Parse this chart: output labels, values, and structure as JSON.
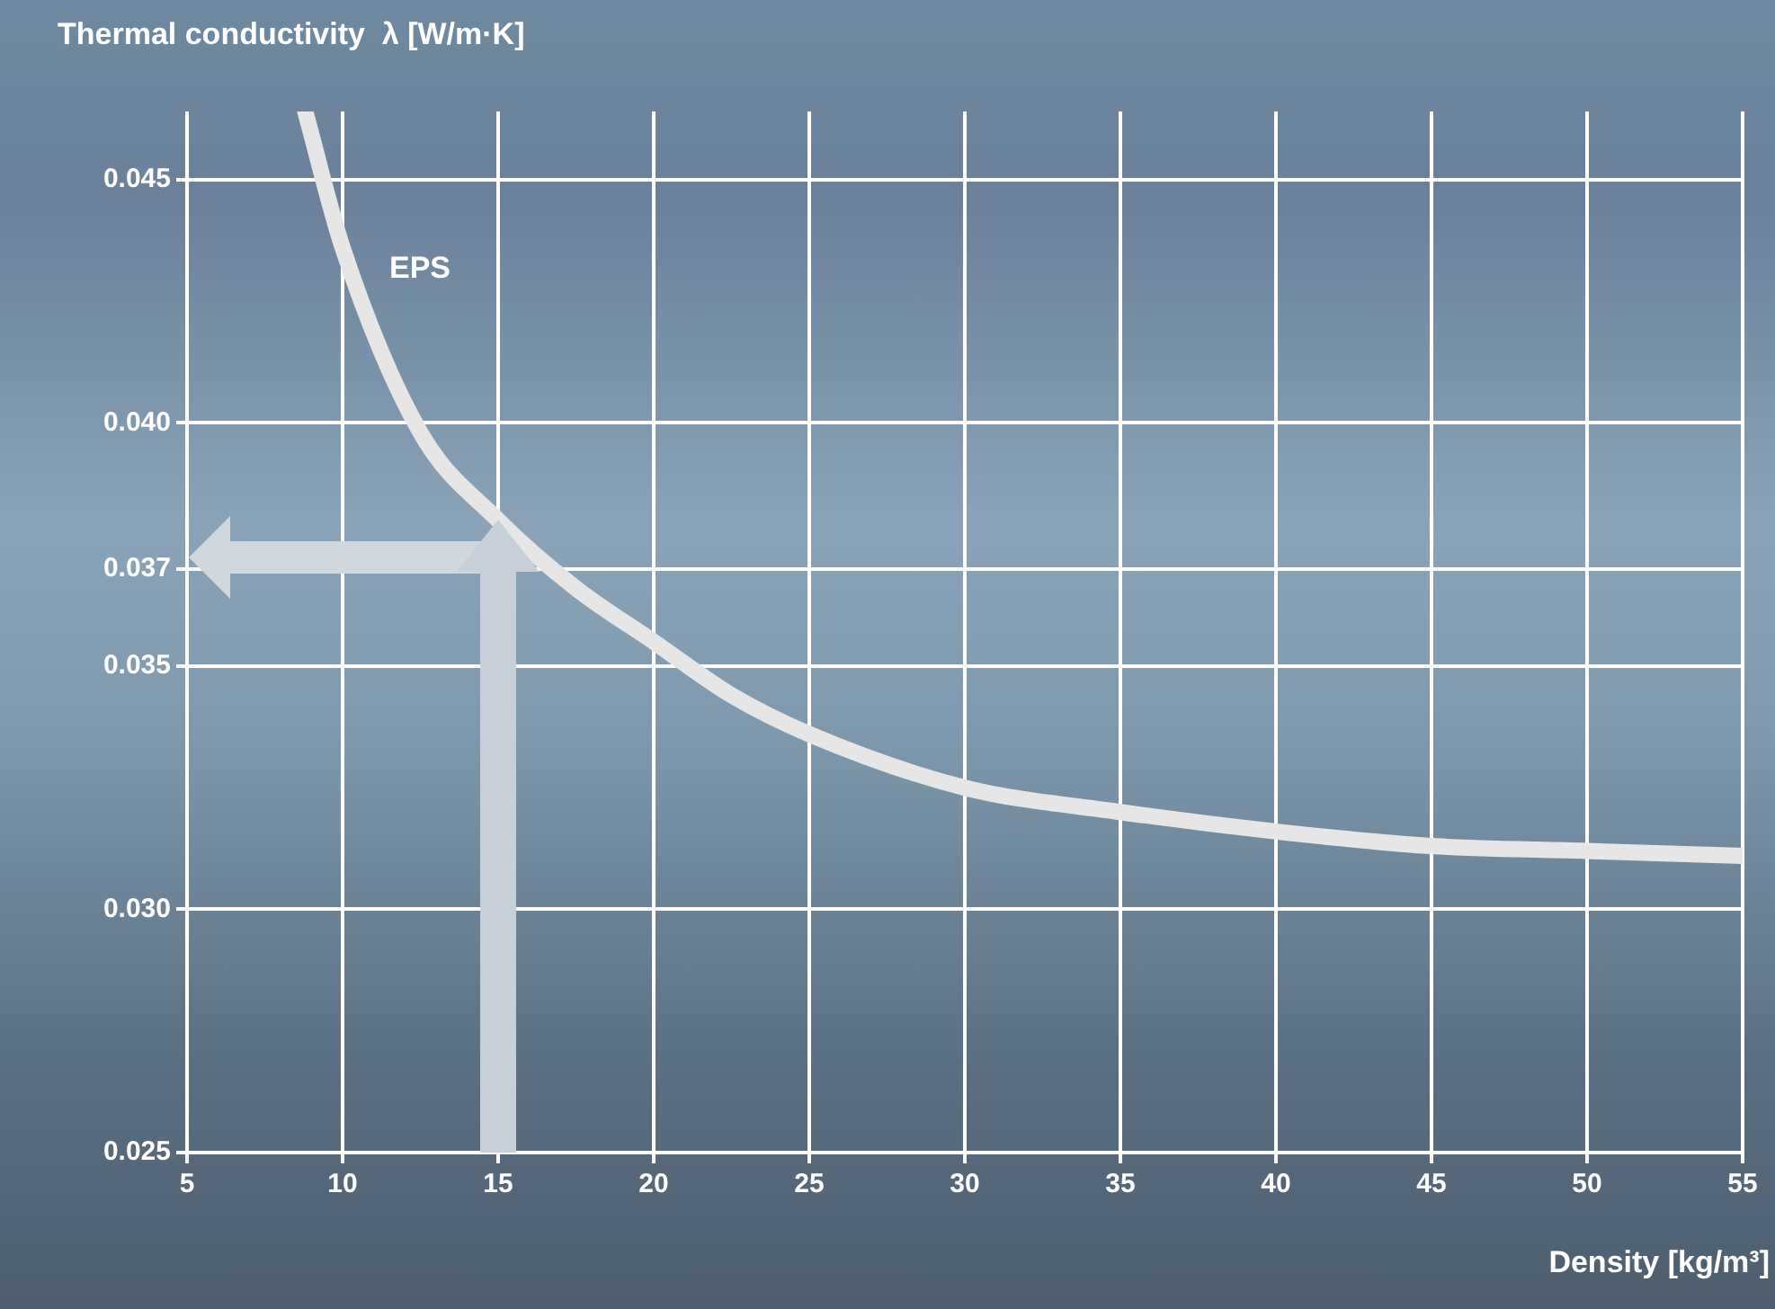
{
  "chart_data": {
    "type": "line",
    "xlabel": "Density [kg/m³]",
    "ylabel": "Thermal conductivity  λ [W/m·K]",
    "x": [
      8.8,
      10,
      12.5,
      15,
      17.5,
      20,
      22.5,
      25,
      30,
      35,
      40,
      45,
      50,
      55
    ],
    "series": [
      {
        "name": "EPS",
        "color": "#e6e6e6",
        "values": [
          0.0464,
          0.0436,
          0.0398,
          0.038,
          0.0366,
          0.0355,
          0.0344,
          0.0336,
          0.0325,
          0.032,
          0.0316,
          0.0313,
          0.0312,
          0.0311
        ]
      }
    ],
    "xlim": [
      5,
      55
    ],
    "xticks": [
      5,
      10,
      15,
      20,
      25,
      30,
      35,
      40,
      45,
      50,
      55
    ],
    "ylim": [
      0.025,
      0.0464
    ],
    "yticks": [
      0.025,
      {
        "value": 0.03,
        "label": "0.030"
      },
      0.035,
      0.037,
      {
        "value": 0.04,
        "label": "0.040"
      },
      0.045
    ],
    "grid": true,
    "legend": false,
    "marker": "none",
    "line_style": "solid"
  }
}
